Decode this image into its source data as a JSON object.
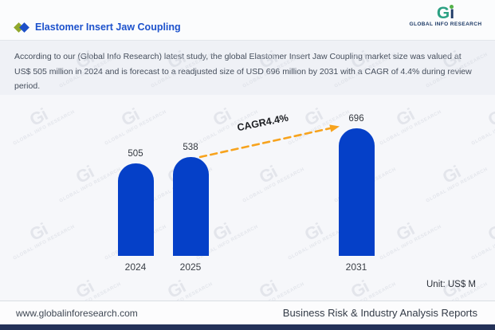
{
  "header": {
    "title": "Elastomer Insert Jaw Coupling",
    "logo": {
      "g": "G",
      "i": "ı",
      "text": "GLOBAL INFO RESEARCH"
    }
  },
  "description": "According to our (Global Info Research) latest study, the global Elastomer Insert Jaw Coupling market size was valued at US$ 505 million in 2024 and is forecast to a readjusted size of USD 696 million by 2031 with a CAGR of 4.4% during review period.",
  "chart_data": {
    "type": "bar",
    "categories": [
      "2024",
      "2025",
      "2031"
    ],
    "values": [
      505,
      538,
      696
    ],
    "title": "Elastomer Insert Jaw Coupling market size",
    "xlabel": "",
    "ylabel": "",
    "ylim": [
      0,
      800
    ],
    "annotation": "CAGR4.4%",
    "unit_label": "Unit: US$ M",
    "bar_color": "#0540c8",
    "arrow_color": "#f7a31d",
    "legend": "none",
    "grid": false
  },
  "footer": {
    "website": "www.globalinforesearch.com",
    "tagline": "Business Risk & Industry Analysis Reports"
  },
  "watermark": {
    "big": "Gi",
    "text": "GLOBAL INFO RESEARCH"
  },
  "colors": {
    "bar_blue": "#0540c8",
    "arrow_orange": "#f7a31d",
    "title_blue": "#1d52cc",
    "logo_teal": "#2ba183",
    "logo_navy": "#1d3a66",
    "bottom_strip_navy": "#233158",
    "diamond_olive": "#90a82c",
    "diamond_blue": "#1d50c8"
  }
}
